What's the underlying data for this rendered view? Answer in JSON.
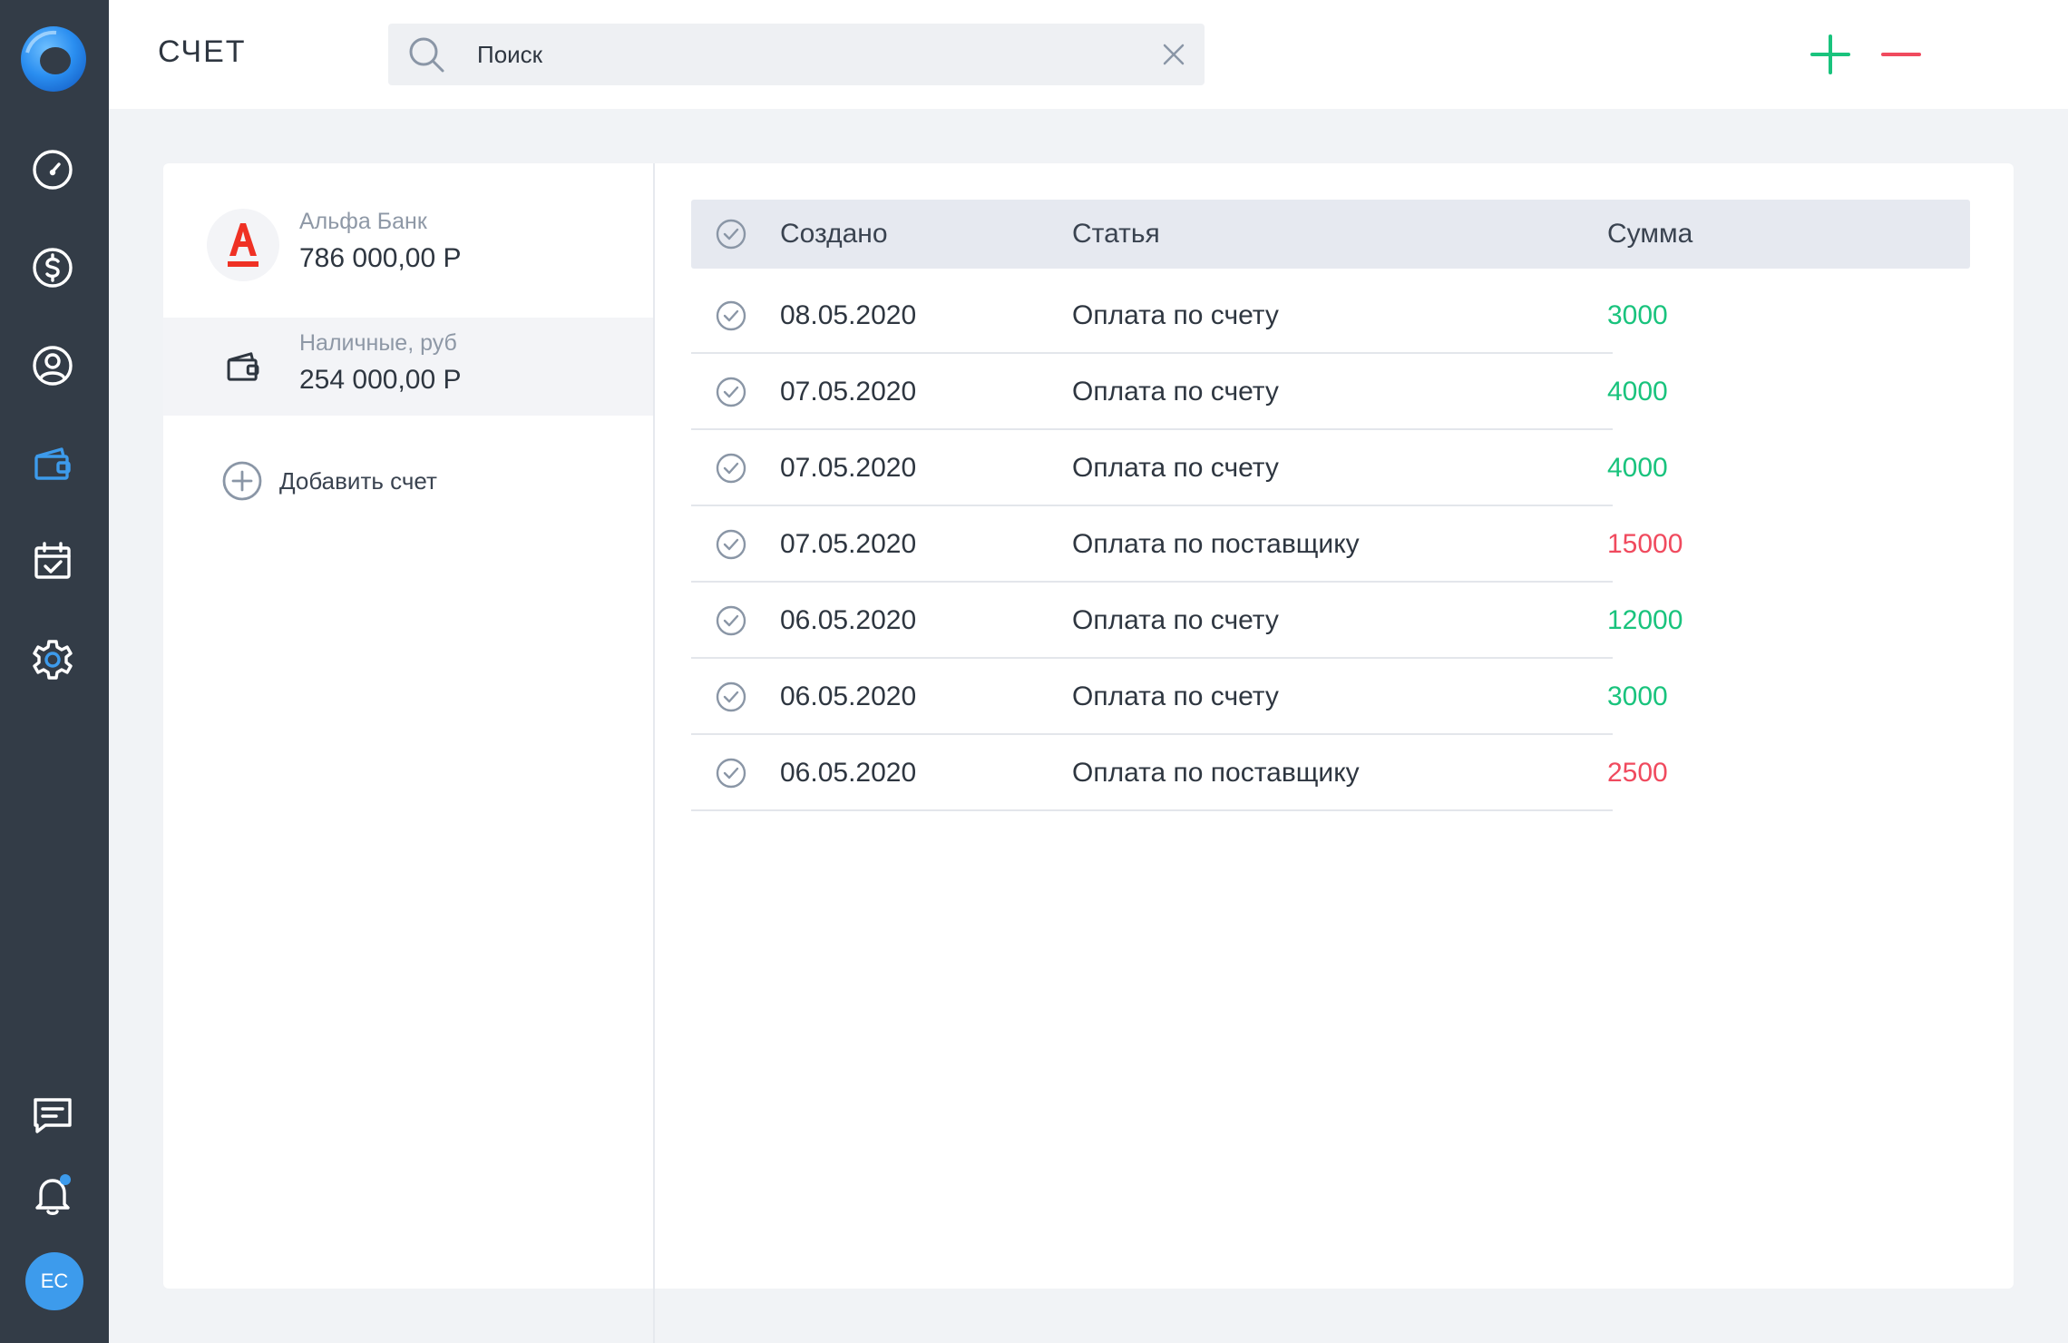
{
  "sidebar": {
    "icons": [
      "logo-icon",
      "dashboard-icon",
      "dollar-icon",
      "user-icon",
      "wallet-icon",
      "calendar-check-icon",
      "gear-icon",
      "chat-icon",
      "bell-icon"
    ],
    "active_color": "#3d9bec",
    "avatar_initials": "EC"
  },
  "header": {
    "title": "СЧЕТ",
    "search": {
      "placeholder": "Поиск",
      "value": ""
    }
  },
  "accounts": [
    {
      "name": "Альфа Банк",
      "balance": "786 000,00 Р",
      "icon": "alfa-bank-logo"
    },
    {
      "name": "Наличные, руб",
      "balance": "254 000,00 Р",
      "icon": "wallet-icon"
    }
  ],
  "add_account_label": "Добавить счет",
  "table": {
    "headers": {
      "created": "Создано",
      "article": "Статья",
      "amount": "Сумма"
    },
    "rows": [
      {
        "date": "08.05.2020",
        "article": "Оплата по счету",
        "amount": "3000",
        "type": "income"
      },
      {
        "date": "07.05.2020",
        "article": "Оплата по счету",
        "amount": "4000",
        "type": "income"
      },
      {
        "date": "07.05.2020",
        "article": "Оплата по счету",
        "amount": "4000",
        "type": "income"
      },
      {
        "date": "07.05.2020",
        "article": "Оплата по поставщику",
        "amount": "15000",
        "type": "expense"
      },
      {
        "date": "06.05.2020",
        "article": "Оплата по счету",
        "amount": "12000",
        "type": "income"
      },
      {
        "date": "06.05.2020",
        "article": "Оплата по счету",
        "amount": "3000",
        "type": "income"
      },
      {
        "date": "06.05.2020",
        "article": "Оплата по поставщику",
        "amount": "2500",
        "type": "expense"
      }
    ]
  },
  "colors": {
    "income": "#19c37d",
    "expense": "#f04a5e",
    "sidebar_bg": "#333c47",
    "accent": "#3d9bec"
  }
}
